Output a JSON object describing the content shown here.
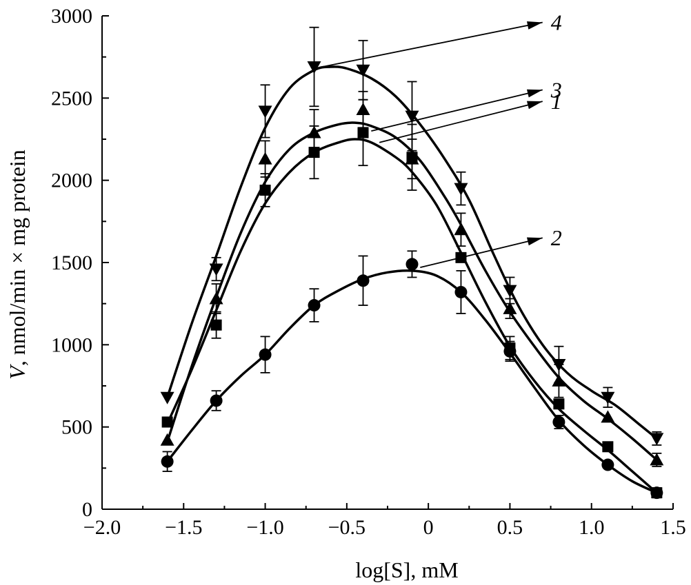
{
  "chart_data": {
    "type": "line",
    "title": "",
    "xlabel": "log[S], mM",
    "ylabel_italic": "V",
    "ylabel_rest": ", nmol/min × mg protein",
    "xlim": [
      -2.0,
      1.5
    ],
    "ylim": [
      0,
      3000
    ],
    "x_ticks": [
      -2.0,
      -1.5,
      -1.0,
      -0.5,
      0,
      0.5,
      1.0,
      1.5
    ],
    "x_tick_labels": [
      "−2.0",
      "−1.5",
      "−1.0",
      "−0.5",
      "0",
      "0.5",
      "1.0",
      "1.5"
    ],
    "y_ticks": [
      0,
      500,
      1000,
      1500,
      2000,
      2500,
      3000
    ],
    "y_tick_labels": [
      "0",
      "500",
      "1000",
      "1500",
      "2000",
      "2500",
      "3000"
    ],
    "grid": false,
    "legend": "none",
    "x": [
      -1.6,
      -1.3,
      -1.0,
      -0.7,
      -0.4,
      -0.1,
      0.2,
      0.5,
      0.8,
      1.1,
      1.4
    ],
    "series": [
      {
        "label": "1",
        "marker": "square",
        "values": [
          530,
          1120,
          1940,
          2170,
          2290,
          2140,
          1530,
          980,
          640,
          380,
          100
        ],
        "errors": [
          0,
          80,
          100,
          160,
          200,
          200,
          0,
          70,
          0,
          0,
          30
        ],
        "fit": [
          [
            -1.6,
            520
          ],
          [
            -1.45,
            850
          ],
          [
            -1.3,
            1210
          ],
          [
            -1.15,
            1570
          ],
          [
            -1.0,
            1860
          ],
          [
            -0.85,
            2050
          ],
          [
            -0.7,
            2170
          ],
          [
            -0.55,
            2230
          ],
          [
            -0.45,
            2250
          ],
          [
            -0.35,
            2230
          ],
          [
            -0.2,
            2140
          ],
          [
            -0.1,
            2050
          ],
          [
            0.05,
            1850
          ],
          [
            0.2,
            1560
          ],
          [
            0.35,
            1260
          ],
          [
            0.5,
            990
          ],
          [
            0.65,
            780
          ],
          [
            0.8,
            610
          ],
          [
            0.95,
            480
          ],
          [
            1.1,
            360
          ],
          [
            1.25,
            230
          ],
          [
            1.4,
            100
          ]
        ],
        "callout": {
          "from": [
            -0.3,
            2230
          ],
          "to": [
            0.7,
            2480
          ]
        }
      },
      {
        "label": "2",
        "marker": "circle",
        "values": [
          290,
          660,
          940,
          1240,
          1390,
          1490,
          1320,
          960,
          530,
          270,
          100
        ],
        "errors": [
          60,
          60,
          110,
          100,
          150,
          80,
          130,
          60,
          40,
          0,
          20
        ],
        "fit": [
          [
            -1.6,
            290
          ],
          [
            -1.45,
            480
          ],
          [
            -1.3,
            660
          ],
          [
            -1.15,
            810
          ],
          [
            -1.0,
            940
          ],
          [
            -0.85,
            1100
          ],
          [
            -0.7,
            1240
          ],
          [
            -0.55,
            1330
          ],
          [
            -0.4,
            1400
          ],
          [
            -0.25,
            1440
          ],
          [
            -0.1,
            1450
          ],
          [
            0.05,
            1420
          ],
          [
            0.2,
            1320
          ],
          [
            0.35,
            1150
          ],
          [
            0.5,
            950
          ],
          [
            0.65,
            740
          ],
          [
            0.8,
            540
          ],
          [
            0.95,
            390
          ],
          [
            1.1,
            270
          ],
          [
            1.25,
            170
          ],
          [
            1.4,
            100
          ]
        ],
        "callout": {
          "from": [
            -0.05,
            1470
          ],
          "to": [
            0.7,
            1650
          ]
        }
      },
      {
        "label": "3",
        "marker": "triangle-up",
        "values": [
          420,
          1280,
          2130,
          2290,
          2430,
          2130,
          1700,
          1220,
          780,
          560,
          300
        ],
        "errors": [
          0,
          90,
          110,
          140,
          110,
          120,
          100,
          60,
          100,
          0,
          40
        ],
        "fit": [
          [
            -1.6,
            410
          ],
          [
            -1.45,
            870
          ],
          [
            -1.3,
            1290
          ],
          [
            -1.15,
            1680
          ],
          [
            -1.0,
            1990
          ],
          [
            -0.85,
            2190
          ],
          [
            -0.7,
            2290
          ],
          [
            -0.55,
            2340
          ],
          [
            -0.45,
            2350
          ],
          [
            -0.35,
            2330
          ],
          [
            -0.2,
            2260
          ],
          [
            -0.05,
            2120
          ],
          [
            0.1,
            1900
          ],
          [
            0.2,
            1730
          ],
          [
            0.35,
            1450
          ],
          [
            0.5,
            1200
          ],
          [
            0.65,
            990
          ],
          [
            0.8,
            800
          ],
          [
            0.95,
            660
          ],
          [
            1.1,
            550
          ],
          [
            1.25,
            430
          ],
          [
            1.4,
            300
          ]
        ],
        "callout": {
          "from": [
            -0.35,
            2300
          ],
          "to": [
            0.7,
            2550
          ]
        }
      },
      {
        "label": "4",
        "marker": "triangle-down",
        "values": [
          680,
          1460,
          2420,
          2690,
          2670,
          2390,
          1950,
          1330,
          880,
          680,
          430
        ],
        "errors": [
          0,
          70,
          160,
          240,
          180,
          210,
          100,
          80,
          110,
          60,
          40
        ],
        "fit": [
          [
            -1.6,
            680
          ],
          [
            -1.45,
            1130
          ],
          [
            -1.3,
            1540
          ],
          [
            -1.15,
            1960
          ],
          [
            -1.0,
            2320
          ],
          [
            -0.85,
            2560
          ],
          [
            -0.7,
            2670
          ],
          [
            -0.6,
            2690
          ],
          [
            -0.5,
            2680
          ],
          [
            -0.35,
            2620
          ],
          [
            -0.2,
            2510
          ],
          [
            -0.05,
            2340
          ],
          [
            0.1,
            2130
          ],
          [
            0.25,
            1880
          ],
          [
            0.4,
            1550
          ],
          [
            0.55,
            1240
          ],
          [
            0.7,
            1000
          ],
          [
            0.85,
            830
          ],
          [
            1.0,
            720
          ],
          [
            1.15,
            630
          ],
          [
            1.3,
            510
          ],
          [
            1.4,
            430
          ]
        ],
        "callout": {
          "from": [
            -0.65,
            2690
          ],
          "to": [
            0.7,
            2960
          ]
        }
      }
    ]
  }
}
